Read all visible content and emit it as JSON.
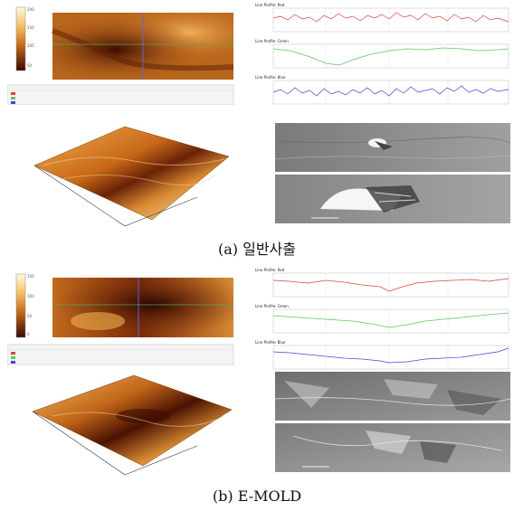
{
  "panels": [
    {
      "id": "a",
      "caption": "(a) 일반사출",
      "afm_title": "",
      "line_profile_titles": [
        "Line Profile: Red",
        "Line Profile: Green",
        "Line Profile: Blue"
      ],
      "colors": {
        "red": "#e0403a",
        "green": "#5ac85a",
        "blue": "#3a4ad8"
      }
    },
    {
      "id": "b",
      "caption": "(b) E-MOLD",
      "afm_title": "",
      "line_profile_titles": [
        "Line Profile: Red",
        "Line Profile: Green",
        "Line Profile: Blue"
      ],
      "colors": {
        "red": "#e0403a",
        "green": "#5ac85a",
        "blue": "#3a4ad8"
      }
    }
  ]
}
